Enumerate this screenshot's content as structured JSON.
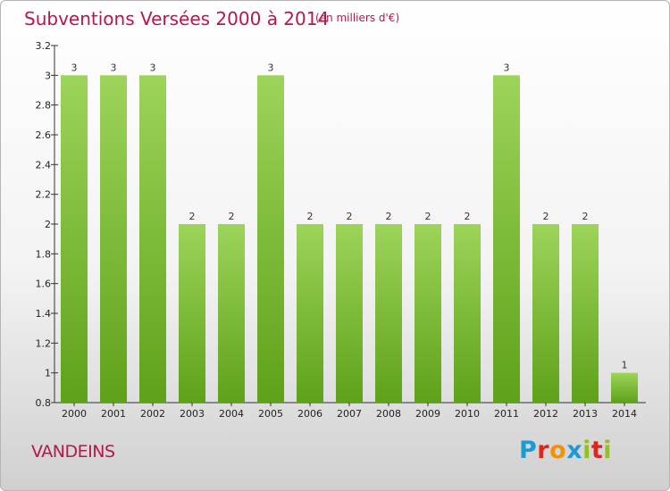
{
  "title": "Subventions Versées 2000 à 2014",
  "subtitle": "(en milliers d'€)",
  "commune": "VANDEINS",
  "logo": {
    "letters": [
      "P",
      "r",
      "o",
      "x",
      "i",
      "t",
      "i"
    ],
    "colors": [
      "#1b9ad6",
      "#e2231a",
      "#f39200",
      "#1b9ad6",
      "#95c11f",
      "#e2231a",
      "#95c11f"
    ]
  },
  "colors": {
    "accent": "#b5174e",
    "bar_light": "#9dd45a",
    "bar_dark": "#5fa11a"
  },
  "chart_data": {
    "type": "bar",
    "title": "Subventions Versées 2000 à 2014",
    "xlabel": "",
    "ylabel": "",
    "ylim": [
      0.8,
      3.2
    ],
    "yticks": [
      "0.8",
      "1",
      "1.2",
      "1.4",
      "1.6",
      "1.8",
      "2",
      "2.2",
      "2.4",
      "2.6",
      "2.8",
      "3",
      "3.2"
    ],
    "grid": false,
    "categories": [
      "2000",
      "2001",
      "2002",
      "2003",
      "2004",
      "2005",
      "2006",
      "2007",
      "2008",
      "2009",
      "2010",
      "2011",
      "2012",
      "2013",
      "2014"
    ],
    "values": [
      3,
      3,
      3,
      2,
      2,
      3,
      2,
      2,
      2,
      2,
      2,
      3,
      2,
      2,
      1
    ],
    "data_labels": [
      "3",
      "3",
      "3",
      "2",
      "2",
      "3",
      "2",
      "2",
      "2",
      "2",
      "2",
      "3",
      "2",
      "2",
      "1"
    ]
  }
}
